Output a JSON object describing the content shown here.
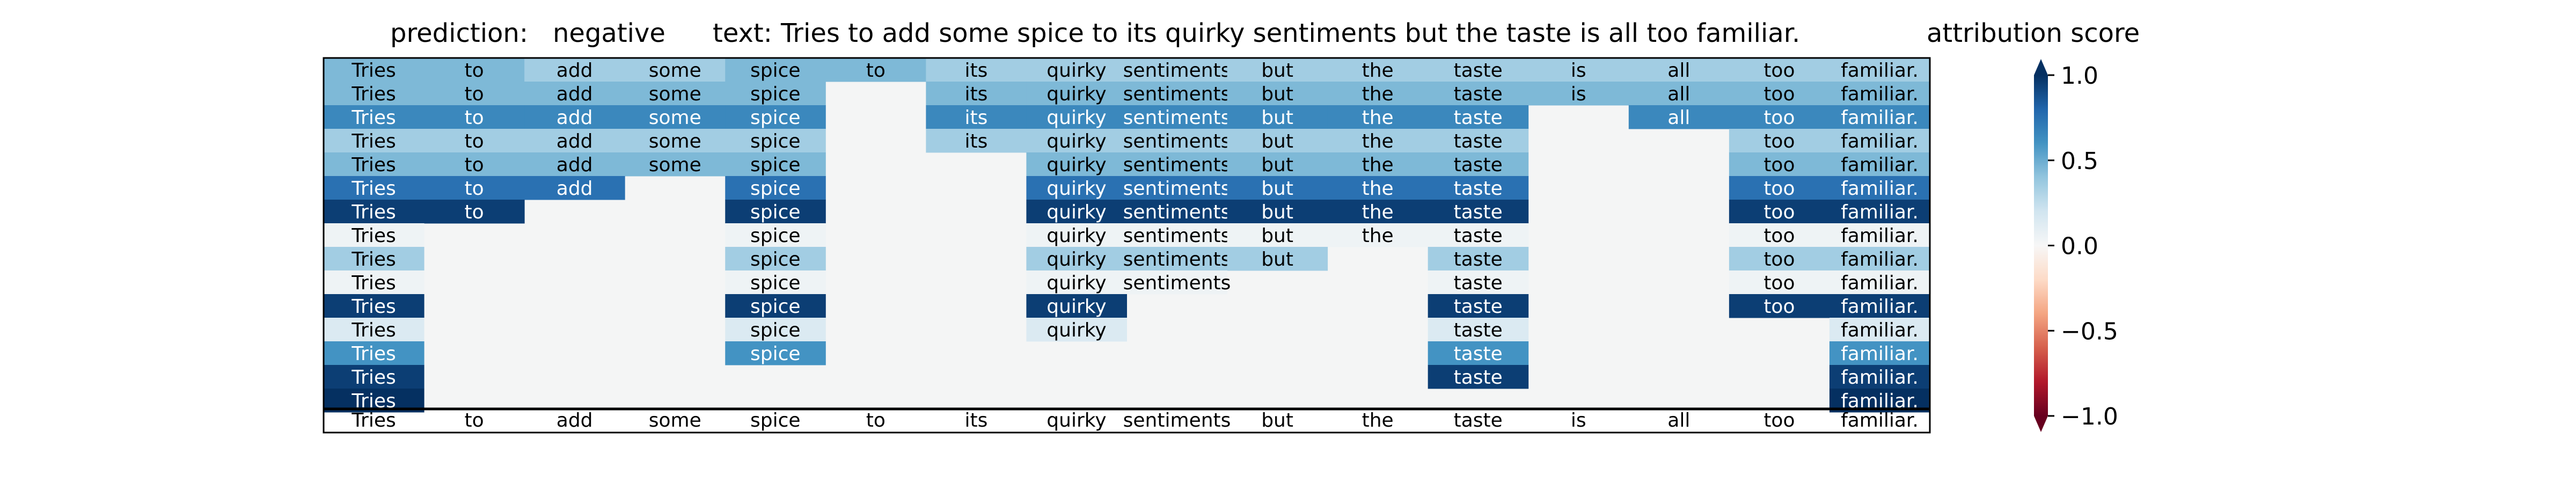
{
  "chart_data": {
    "type": "heatmap",
    "title": {
      "prediction_label": "prediction:",
      "prediction_value": "negative",
      "text_label": "text:",
      "text_value": "Tries to add some spice to its quirky sentiments but the taste is all too familiar."
    },
    "tokens": [
      "Tries",
      "to",
      "add",
      "some",
      "spice",
      "to",
      "its",
      "quirky",
      "sentiments",
      "but",
      "the",
      "taste",
      "is",
      "all",
      "too",
      "familiar."
    ],
    "rows": [
      [
        0.45,
        0.45,
        0.35,
        0.35,
        0.45,
        0.45,
        0.35,
        0.35,
        0.35,
        0.35,
        0.35,
        0.35,
        0.35,
        0.35,
        0.35,
        0.35
      ],
      [
        0.45,
        0.45,
        0.45,
        0.45,
        0.45,
        null,
        0.45,
        0.45,
        0.45,
        0.45,
        0.45,
        0.45,
        0.45,
        0.45,
        0.45,
        0.45
      ],
      [
        0.65,
        0.65,
        0.65,
        0.65,
        0.65,
        null,
        0.65,
        0.65,
        0.65,
        0.65,
        0.65,
        0.65,
        null,
        0.65,
        0.65,
        0.65
      ],
      [
        0.35,
        0.35,
        0.35,
        0.35,
        0.35,
        null,
        0.35,
        0.35,
        0.35,
        0.35,
        0.35,
        0.35,
        null,
        null,
        0.35,
        0.35
      ],
      [
        0.45,
        0.45,
        0.45,
        0.45,
        0.45,
        null,
        null,
        0.45,
        0.45,
        0.45,
        0.45,
        0.45,
        null,
        null,
        0.45,
        0.45
      ],
      [
        0.75,
        0.75,
        0.75,
        null,
        0.75,
        null,
        null,
        0.75,
        0.75,
        0.75,
        0.75,
        0.75,
        null,
        null,
        0.75,
        0.75
      ],
      [
        0.95,
        0.95,
        null,
        null,
        0.95,
        null,
        null,
        0.95,
        0.95,
        0.95,
        0.95,
        0.95,
        null,
        null,
        0.95,
        0.95
      ],
      [
        0.05,
        null,
        null,
        null,
        0.05,
        null,
        null,
        0.05,
        0.05,
        0.05,
        0.05,
        0.05,
        null,
        null,
        0.05,
        0.05
      ],
      [
        0.35,
        null,
        null,
        null,
        0.35,
        null,
        null,
        0.35,
        0.35,
        0.35,
        null,
        0.35,
        null,
        null,
        0.35,
        0.35
      ],
      [
        0.05,
        null,
        null,
        null,
        0.05,
        null,
        null,
        0.05,
        0.05,
        null,
        null,
        0.05,
        null,
        null,
        0.05,
        0.05
      ],
      [
        0.95,
        null,
        null,
        null,
        0.95,
        null,
        null,
        0.95,
        null,
        null,
        null,
        0.95,
        null,
        null,
        0.95,
        0.95
      ],
      [
        0.15,
        null,
        null,
        null,
        0.15,
        null,
        null,
        0.15,
        null,
        null,
        null,
        0.15,
        null,
        null,
        null,
        0.15
      ],
      [
        0.6,
        null,
        null,
        null,
        0.6,
        null,
        null,
        null,
        null,
        null,
        null,
        0.6,
        null,
        null,
        null,
        0.6
      ],
      [
        0.95,
        null,
        null,
        null,
        null,
        null,
        null,
        null,
        null,
        null,
        null,
        0.95,
        null,
        null,
        null,
        0.95
      ],
      [
        1.0,
        null,
        null,
        null,
        null,
        null,
        null,
        null,
        null,
        null,
        null,
        null,
        null,
        null,
        null,
        1.0
      ]
    ],
    "colorbar": {
      "label": "attribution score",
      "range": [
        -1.0,
        1.0
      ],
      "ticks": [
        1.0,
        0.5,
        0.0,
        -0.5,
        -1.0
      ],
      "tick_labels": [
        "1.0",
        "0.5",
        "0.0",
        "−0.5",
        "−1.0"
      ],
      "colormap": "RdBu"
    },
    "empty_color": "#f4f5f5"
  }
}
